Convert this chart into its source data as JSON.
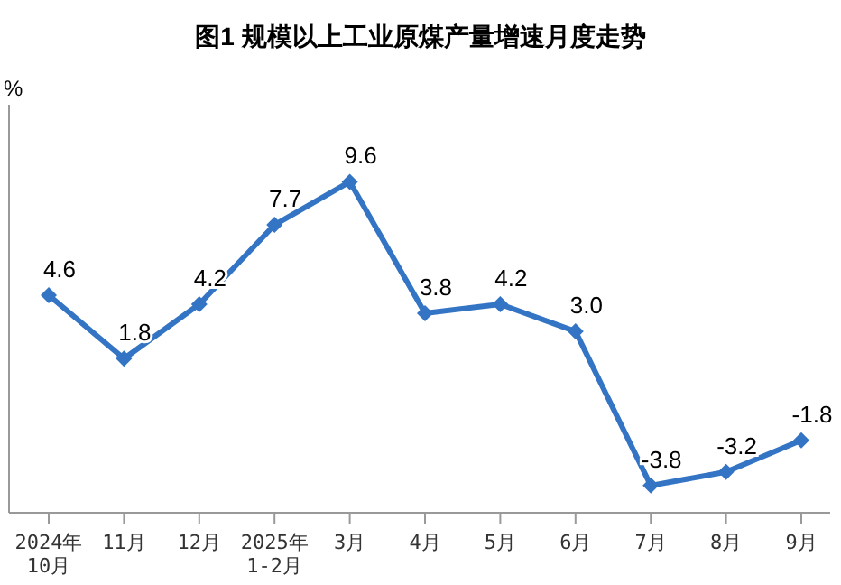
{
  "chart_data": {
    "type": "line",
    "title": "图1  规模以上工业原煤产量增速月度走势",
    "ylabel": "%",
    "categories": [
      "2024年\n10月",
      "11月",
      "12月",
      "2025年\n1-2月",
      "3月",
      "4月",
      "5月",
      "6月",
      "7月",
      "8月",
      "9月"
    ],
    "series": [
      {
        "color": "#3474c4",
        "values": [
          4.6,
          1.8,
          4.2,
          7.7,
          9.6,
          3.8,
          4.2,
          3.0,
          -3.8,
          -3.2,
          -1.8
        ],
        "value_labels": [
          "4.6",
          "1.8",
          "4.2",
          "7.7",
          "9.6",
          "3.8",
          "4.2",
          "3.0",
          "-3.8",
          "-3.2",
          "-1.8"
        ]
      }
    ],
    "ylim": [
      -5,
      13
    ],
    "tick_labels": "x",
    "marker": "diamond",
    "line_style": "solid"
  }
}
